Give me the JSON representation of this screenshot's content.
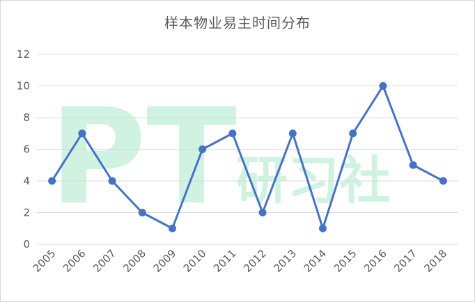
{
  "chart_data": {
    "type": "line",
    "title": "样本物业易主时间分布",
    "categories": [
      "2005",
      "2006",
      "2007",
      "2008",
      "2009",
      "2010",
      "2011",
      "2012",
      "2013",
      "2014",
      "2015",
      "2016",
      "2017",
      "2018"
    ],
    "series": [
      {
        "values": [
          4,
          7,
          4,
          2,
          1,
          6,
          7,
          2,
          7,
          1,
          7,
          10,
          5,
          4
        ]
      }
    ],
    "ylim": [
      0,
      12
    ],
    "yticks": [
      0,
      2,
      4,
      6,
      8,
      10,
      12
    ],
    "grid": true,
    "legend": "none",
    "line_color": "#4472c4",
    "xlabel": "",
    "ylabel": ""
  },
  "watermark": {
    "latin": "PT",
    "cjk": "研习社",
    "color": "#c8f2dc"
  }
}
